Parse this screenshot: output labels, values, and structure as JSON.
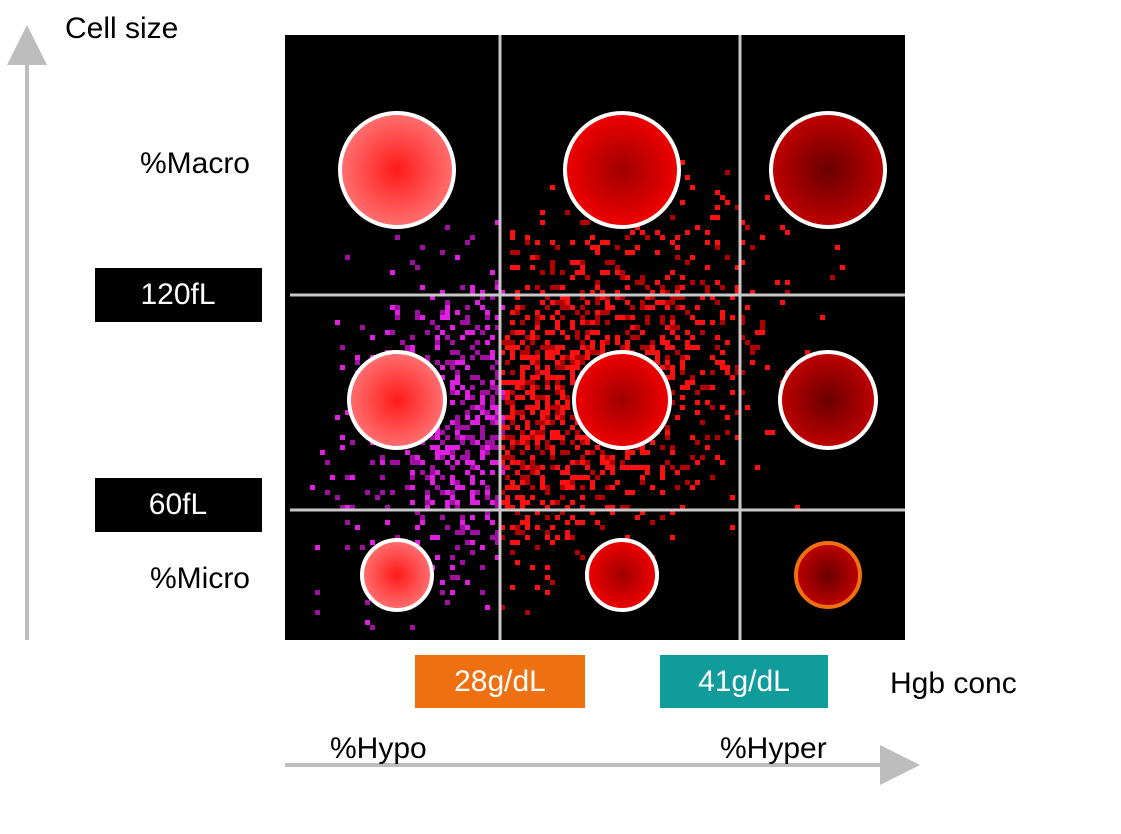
{
  "y_axis": {
    "title": "Cell size",
    "top_label": "%Macro",
    "thresholds": [
      "120fL",
      "60fL"
    ],
    "bottom_label": "%Micro"
  },
  "x_axis": {
    "title": "Hgb conc",
    "thresholds": [
      "28g/dL",
      "41g/dL"
    ],
    "left_label": "%Hypo",
    "right_label": "%Hyper"
  }
}
